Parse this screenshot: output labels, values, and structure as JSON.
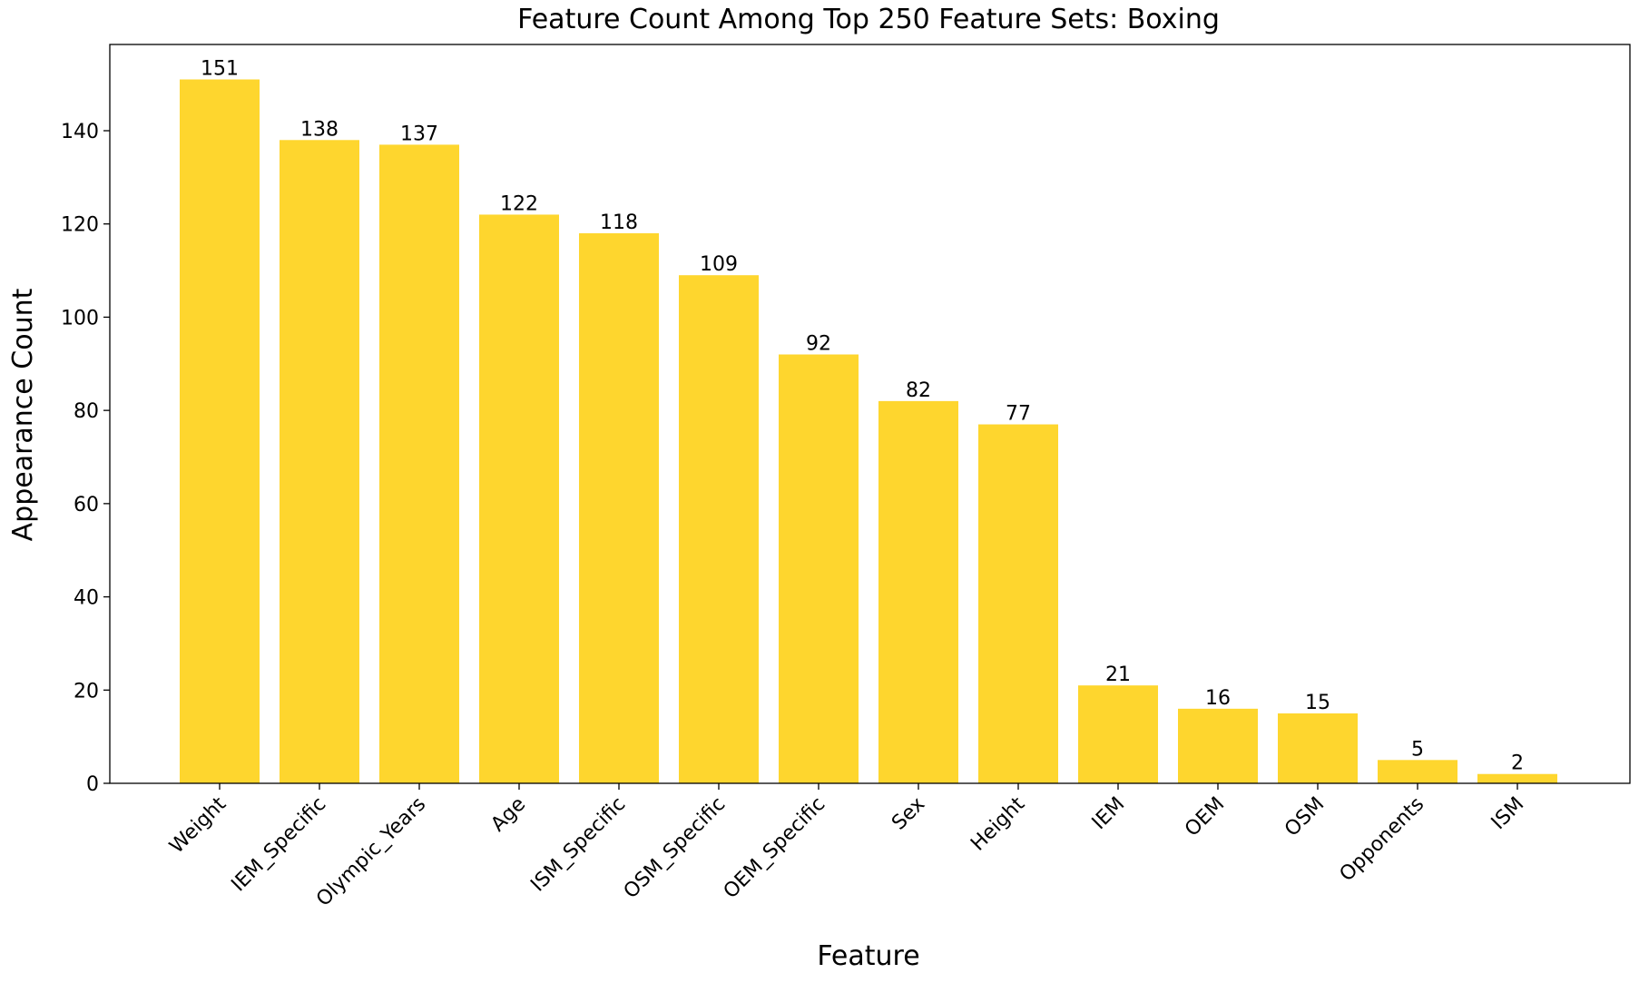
{
  "chart_data": {
    "type": "bar",
    "title": "Feature Count Among Top 250 Feature Sets: Boxing",
    "xlabel": "Feature",
    "ylabel": "Appearance Count",
    "categories": [
      "Weight",
      "IEM_Specific",
      "Olympic_Years",
      "Age",
      "ISM_Specific",
      "OSM_Specific",
      "OEM_Specific",
      "Sex",
      "Height",
      "IEM",
      "OEM",
      "OSM",
      "Opponents",
      "ISM"
    ],
    "values": [
      151,
      138,
      137,
      122,
      118,
      109,
      92,
      82,
      77,
      21,
      16,
      15,
      5,
      2
    ],
    "ylim": [
      0,
      158.5
    ],
    "yticks": [
      0,
      20,
      40,
      60,
      80,
      100,
      120,
      140
    ],
    "grid": false,
    "bar_color": "#fed62e",
    "x_tick_rotation_deg": -45
  }
}
